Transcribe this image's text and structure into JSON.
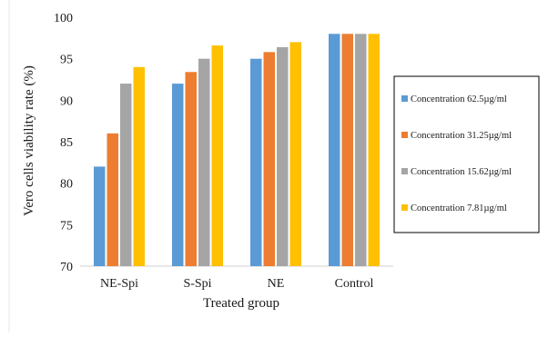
{
  "chart_data": {
    "type": "bar",
    "title": "",
    "xlabel": "Treated group",
    "ylabel": "Vero cells viability rate  (%)",
    "categories": [
      "NE-Spi",
      "S-Spi",
      "NE",
      "Control"
    ],
    "series": [
      {
        "name": "Concentration 62.5µg/ml",
        "values": [
          82,
          92,
          95,
          98
        ],
        "color": "#5b9bd5"
      },
      {
        "name": "Concentration 31.25µg/ml",
        "values": [
          86,
          93.4,
          95.8,
          98
        ],
        "color": "#ed7d31"
      },
      {
        "name": "Concentration 15.62µg/ml",
        "values": [
          92,
          95,
          96.4,
          98
        ],
        "color": "#a5a5a5"
      },
      {
        "name": "Concentration 7.81µg/ml",
        "values": [
          94,
          96.6,
          97,
          98
        ],
        "color": "#ffc000"
      }
    ],
    "ylim": [
      70,
      100
    ],
    "yticks": [
      70,
      75,
      80,
      85,
      90,
      95,
      100
    ],
    "grid": false,
    "legend_position": "right"
  }
}
